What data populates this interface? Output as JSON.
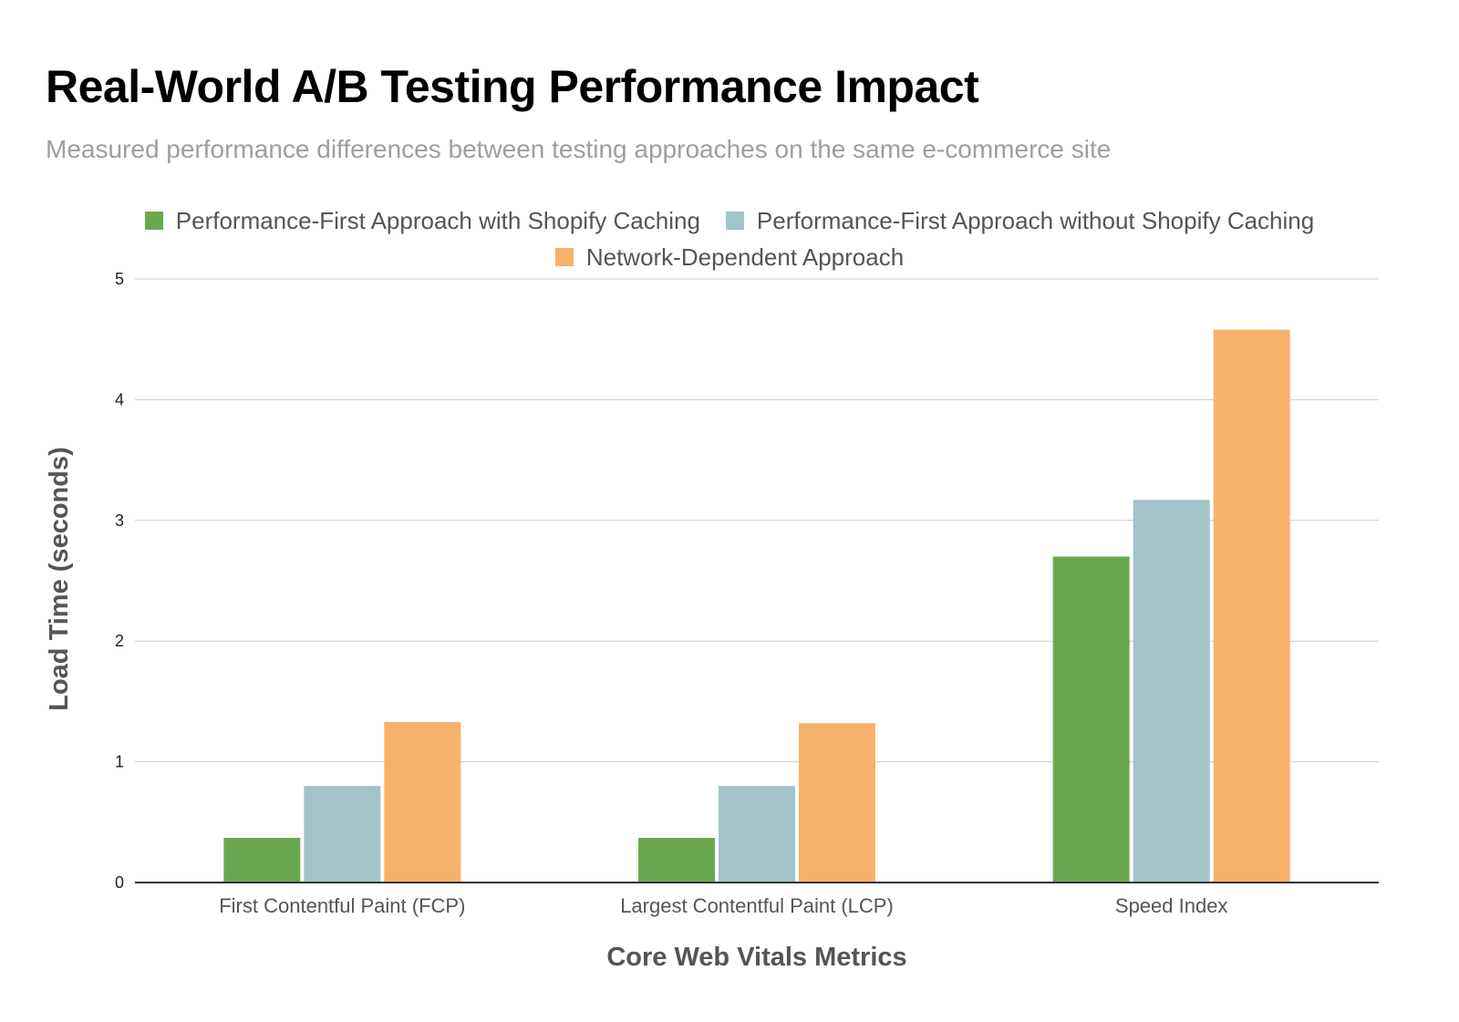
{
  "chart_data": {
    "type": "bar",
    "title": "Real-World A/B Testing Performance Impact",
    "subtitle": "Measured performance differences between testing approaches on the same e-commerce site",
    "xlabel": "Core Web Vitals Metrics",
    "ylabel": "Load Time (seconds)",
    "ylim": [
      0,
      5
    ],
    "yticks": [
      "0",
      "1",
      "2",
      "3",
      "4",
      "5"
    ],
    "grid": true,
    "legend_position": "top",
    "categories": [
      "First Contentful Paint (FCP)",
      "Largest Contentful Paint (LCP)",
      "Speed Index"
    ],
    "series": [
      {
        "name": "Performance-First Approach with Shopify Caching",
        "color": "#6aa84f",
        "values": [
          0.37,
          0.37,
          2.7
        ]
      },
      {
        "name": "Performance-First Approach without Shopify Caching",
        "color": "#a2c4c9",
        "values": [
          0.8,
          0.8,
          3.17
        ]
      },
      {
        "name": "Network-Dependent Approach",
        "color": "#f6b26b",
        "values": [
          1.33,
          1.32,
          4.58
        ]
      }
    ]
  }
}
